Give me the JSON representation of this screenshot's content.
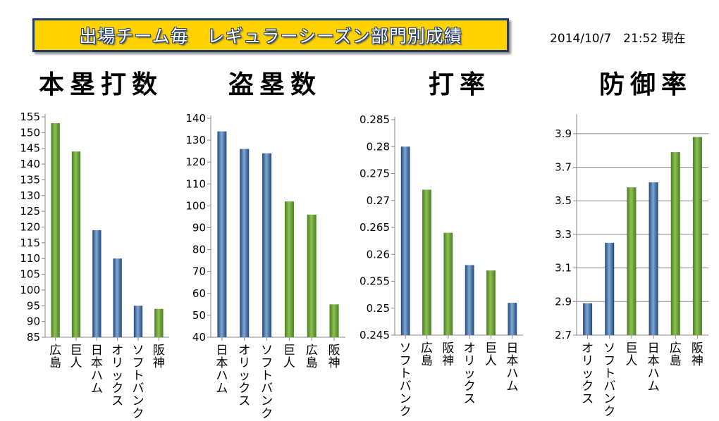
{
  "header": {
    "title": "出場チーム毎　レギュラーシーズン部門別成績",
    "timestamp": "2014/10/7　21:52 現在"
  },
  "colors": {
    "green": "#6fa63a",
    "blue": "#3d6fa5",
    "axis": "#888888"
  },
  "chart_data": [
    {
      "type": "bar",
      "title": "本塁打数",
      "categories": [
        "広島",
        "巨人",
        "日本ハム",
        "オリックス",
        "ソフトバンク",
        "阪神"
      ],
      "values": [
        153,
        144,
        119,
        110,
        95,
        94
      ],
      "bar_colors": [
        "green",
        "green",
        "blue",
        "blue",
        "blue",
        "green"
      ],
      "ylim": [
        85,
        155
      ],
      "yticks": [
        "85",
        "90",
        "95",
        "100",
        "105",
        "110",
        "115",
        "120",
        "125",
        "130",
        "135",
        "140",
        "145",
        "150",
        "155"
      ],
      "grid": false
    },
    {
      "type": "bar",
      "title": "盗塁数",
      "categories": [
        "日本ハム",
        "オリックス",
        "ソフトバンク",
        "巨人",
        "広島",
        "阪神"
      ],
      "values": [
        134,
        126,
        124,
        102,
        96,
        55
      ],
      "bar_colors": [
        "blue",
        "blue",
        "blue",
        "green",
        "green",
        "green"
      ],
      "ylim": [
        40,
        140
      ],
      "yticks": [
        "40",
        "50",
        "60",
        "70",
        "80",
        "90",
        "100",
        "110",
        "120",
        "130",
        "140"
      ],
      "grid": false
    },
    {
      "type": "bar",
      "title": "打率",
      "categories": [
        "ソフトバンク",
        "広島",
        "阪神",
        "オリックス",
        "巨人",
        "日本ハム"
      ],
      "values": [
        0.28,
        0.272,
        0.264,
        0.258,
        0.257,
        0.251
      ],
      "bar_colors": [
        "blue",
        "green",
        "green",
        "blue",
        "green",
        "blue"
      ],
      "ylim": [
        0.245,
        0.285
      ],
      "yticks": [
        "0.245",
        "0.25",
        "0.255",
        "0.26",
        "0.265",
        "0.27",
        "0.275",
        "0.28",
        "0.285"
      ],
      "grid": false
    },
    {
      "type": "bar",
      "title": "防御率",
      "categories": [
        "オリックス",
        "ソフトバンク",
        "巨人",
        "日本ハム",
        "広島",
        "阪神"
      ],
      "values": [
        2.89,
        3.25,
        3.58,
        3.61,
        3.79,
        3.88
      ],
      "bar_colors": [
        "blue",
        "blue",
        "green",
        "blue",
        "green",
        "green"
      ],
      "ylim": [
        2.7,
        4.0
      ],
      "yticks": [
        "2.7",
        "2.9",
        "3.1",
        "3.3",
        "3.5",
        "3.7",
        "3.9"
      ],
      "grid": true
    }
  ]
}
